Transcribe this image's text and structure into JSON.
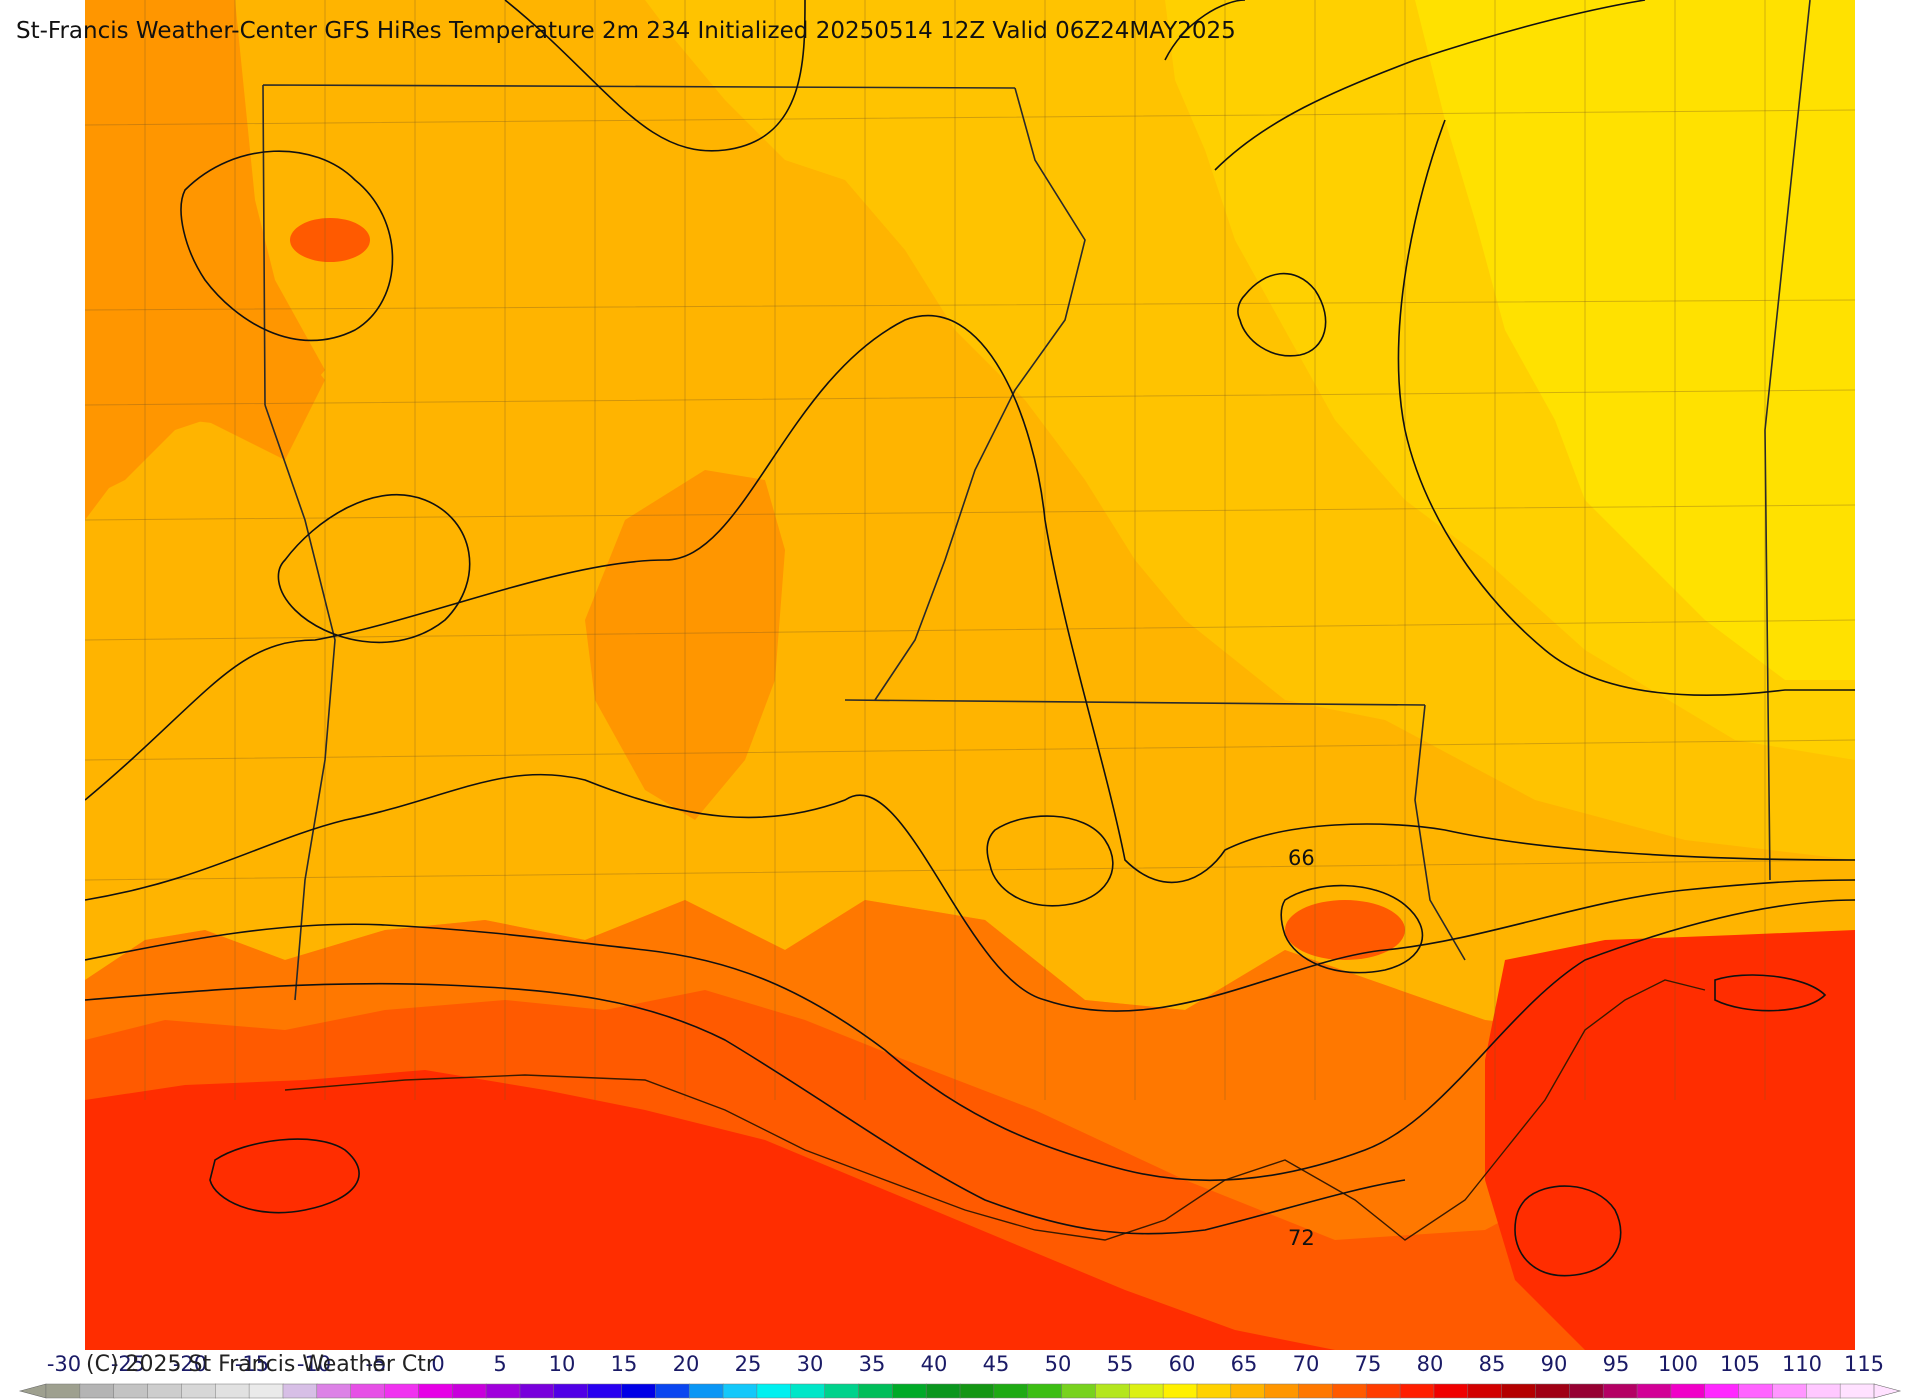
{
  "map": {
    "title": "St-Francis Weather-Center GFS HiRes Temperature 2m  234 Initialized 20250514 12Z Valid 06Z24MAY2025",
    "copyright": "(C) 2025 St Francis Weather Ctr",
    "contour_labels": [
      "66",
      "72"
    ],
    "field_colors": {
      "t55": "#FFC300",
      "t60": "#FFB400",
      "t65": "#FF9600",
      "t70": "#FF7800",
      "t75": "#FF5A00",
      "t80": "#FF2D00",
      "t85": "#FF5A1E",
      "cool": "#FFE100",
      "cooler": "#FFD000"
    }
  },
  "colorbar": {
    "labels": [
      "-30",
      "-25",
      "-20",
      "-15",
      "-10",
      "-5",
      "0",
      "5",
      "10",
      "15",
      "20",
      "25",
      "30",
      "35",
      "40",
      "45",
      "50",
      "55",
      "60",
      "65",
      "70",
      "75",
      "80",
      "85",
      "90",
      "95",
      "100",
      "105",
      "110",
      "115"
    ],
    "colors": [
      "#9ea08f",
      "#b4b4b4",
      "#c3c3c3",
      "#cdcdcd",
      "#d7d7d7",
      "#e1e1e1",
      "#eaeaea",
      "#d7bfe6",
      "#dc82e6",
      "#e650e6",
      "#f032f0",
      "#e600e6",
      "#c800dc",
      "#a000dc",
      "#7800dc",
      "#5000e6",
      "#2800f0",
      "#0000e6",
      "#0a46f0",
      "#0a96f5",
      "#14c8fa",
      "#00f0f0",
      "#00e6c8",
      "#00d28c",
      "#00be5a",
      "#00aa28",
      "#0a961e",
      "#149614",
      "#1eaa14",
      "#3cbe14",
      "#78d21e",
      "#b4e61e",
      "#dcf014",
      "#fff000",
      "#ffd200",
      "#ffb400",
      "#ff9600",
      "#ff7800",
      "#ff5a00",
      "#ff3c00",
      "#ff1e00",
      "#f00000",
      "#d20000",
      "#b40000",
      "#a00014",
      "#960032",
      "#b40064",
      "#d20096",
      "#f000c8",
      "#ff28ff",
      "#ff64ff",
      "#ff96ff",
      "#ffc8ff",
      "#ffe1ff"
    ]
  }
}
